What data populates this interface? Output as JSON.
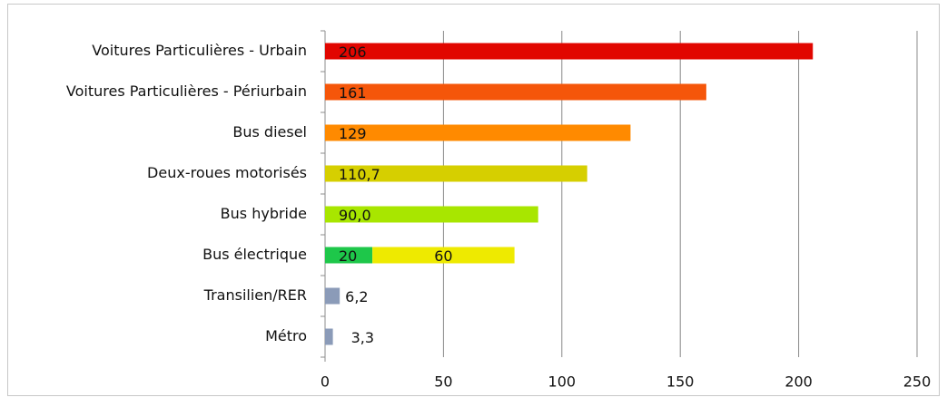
{
  "chart_data": {
    "type": "hbar",
    "categories": [
      "Voitures Particulières - Urbain",
      "Voitures Particulières - Périurbain",
      "Bus diesel",
      "Deux-roues motorisés",
      "Bus hybride",
      "Bus électrique",
      "Transilien/RER",
      "Métro"
    ],
    "series": [
      {
        "values": [
          206,
          161,
          129,
          110.7,
          90.0,
          20,
          6.2,
          3.3
        ],
        "value_labels": [
          "206",
          "161",
          "129",
          "110,7",
          "90,0",
          "20",
          "6,2",
          "3,3"
        ],
        "colors": [
          "#e10600",
          "#f5560a",
          "#ff8a00",
          "#d6cf00",
          "#a8e600",
          "#1ec74a",
          "#8b9bb8",
          "#8b9bb8"
        ]
      },
      {
        "values": [
          null,
          null,
          null,
          null,
          null,
          60,
          null,
          null
        ],
        "value_labels": [
          null,
          null,
          null,
          null,
          null,
          "60",
          null,
          null
        ],
        "colors": [
          null,
          null,
          null,
          null,
          null,
          "#eeea00",
          null,
          null
        ]
      }
    ],
    "xlim": [
      0,
      250
    ],
    "xticks": [
      0,
      50,
      100,
      150,
      200,
      250
    ],
    "grid": true
  }
}
